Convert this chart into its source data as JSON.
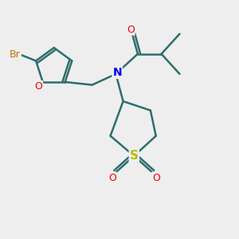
{
  "bg_color": "#eeeeee",
  "bond_color": "#2d6e6e",
  "N_color": "#0000ee",
  "O_color": "#ee0000",
  "S_color": "#bbbb00",
  "Br_color": "#bb7700",
  "line_width": 1.8,
  "fig_size": [
    3.0,
    3.0
  ],
  "dpi": 100,
  "xlim": [
    -3.0,
    3.5
  ],
  "ylim": [
    -3.2,
    2.5
  ]
}
